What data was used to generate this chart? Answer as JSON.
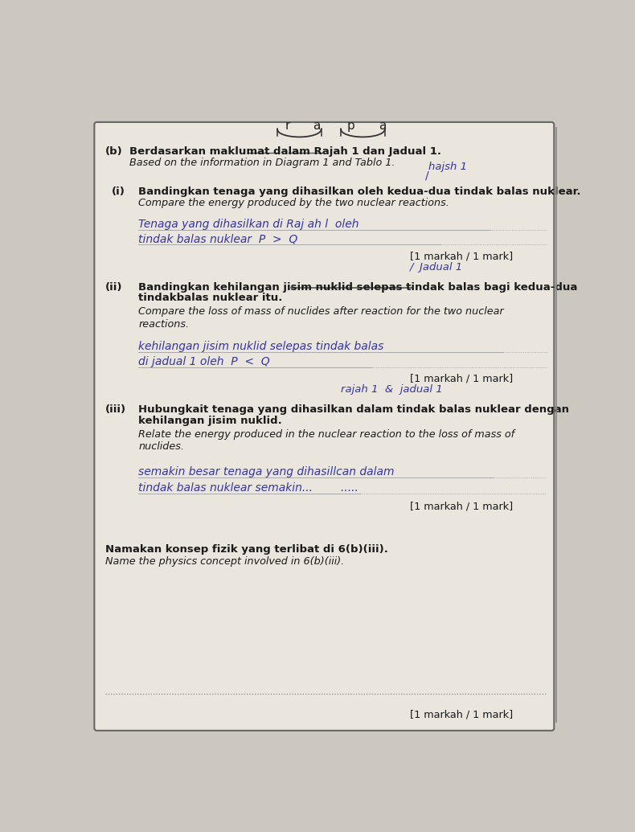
{
  "bg_color": "#ccc8c0",
  "page_bg": "#eae6de",
  "border_color": "#666666",
  "text_color_black": "#1a1a1a",
  "text_color_hw": "#3535a0",
  "top_letters": [
    "r",
    "a",
    "p",
    "a"
  ],
  "section_b_text1": "Berdasarkan maklumat dalam Rajah 1 dan Jadual 1.",
  "section_b_text2": "Based on the information in Diagram 1 and Tablo 1.",
  "rajah1_note": "hajsh 1",
  "part_i_text1": "Bandingkan tenaga yang dihasilkan oleh kedua-dua tindak balas nuklear.",
  "part_i_text2": "Compare the energy produced by the two nuclear reactions.",
  "part_i_answer1": "Tenaga yang dihasilkan di Raj ah l  oleh",
  "part_i_answer2": "tindak balas nuklear  P  >  Q",
  "mark1": "[1 markah / 1 mark]",
  "jadual1_note": "Jadual 1",
  "part_ii_text1": "Bandingkan kehilangan jisim nuklid selepas tindak balas bagi kedua-dua",
  "part_ii_text2": "tindakbalas nuklear itu.",
  "part_ii_text3": "Compare the loss of mass of nuclides after reaction for the two nuclear",
  "part_ii_text4": "reactions.",
  "part_ii_answer1": "kehilangan jisim nuklid selepas tindak balas",
  "part_ii_answer2": "di jadual 1 oleh  P  <  Q",
  "mark2": "[1 markah / 1 mark]",
  "rj_jd_note": "rajah 1  &  jadual 1",
  "part_iii_text1": "Hubungkait tenaga yang dihasilkan dalam tindak balas nuklear dengan",
  "part_iii_text2": "kehilangan jisim nuklid.",
  "part_iii_text3": "Relate the energy produced in the nuclear reaction to the loss of mass of",
  "part_iii_text4": "nuclides.",
  "part_iii_answer1": "semakin besar tenaga yang dihasillcan dalam",
  "part_iii_answer2": "tindak balas nuklear semakin...        .....",
  "mark3": "[1 markah / 1 mark]",
  "name_text1": "Namakan konsep fizik yang terlibat di 6(b)(iii).",
  "name_text2": "Name the physics concept involved in 6(b)(iii).",
  "mark4": "[1 markah / 1 mark]"
}
